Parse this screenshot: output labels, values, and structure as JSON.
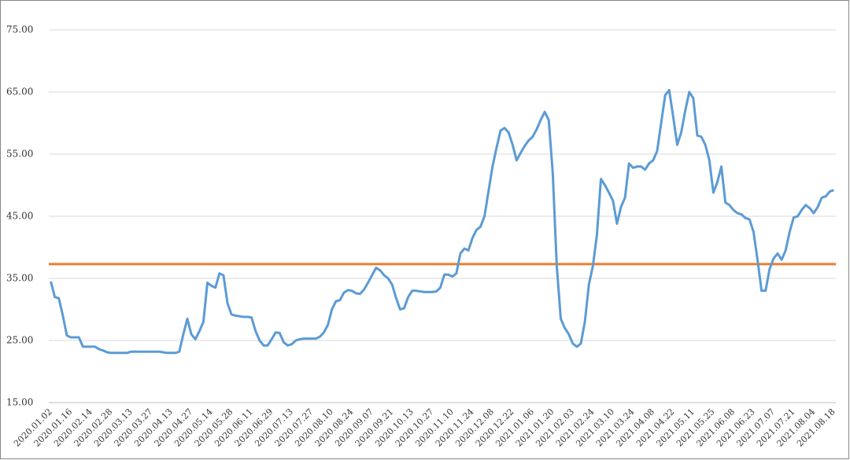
{
  "chart_data": {
    "type": "line",
    "categories": [
      "2020.01.02",
      null,
      null,
      null,
      null,
      "2020.01.16",
      null,
      null,
      null,
      null,
      "2020.02.14",
      null,
      null,
      null,
      null,
      "2020.02.28",
      null,
      null,
      null,
      null,
      "2020.03.13",
      null,
      null,
      null,
      null,
      "2020.03.27",
      null,
      null,
      null,
      null,
      "2020.04.13",
      null,
      null,
      null,
      null,
      "2020.04.27",
      null,
      null,
      null,
      null,
      "2020.05.14",
      null,
      null,
      null,
      null,
      "2020.05.28",
      null,
      null,
      null,
      null,
      "2020.06.11",
      null,
      null,
      null,
      null,
      "2020.06.29",
      null,
      null,
      null,
      null,
      "2020.07.13",
      null,
      null,
      null,
      null,
      "2020.07.27",
      null,
      null,
      null,
      null,
      "2020.08.10",
      null,
      null,
      null,
      null,
      "2020.08.24",
      null,
      null,
      null,
      null,
      "2020.09.07",
      null,
      null,
      null,
      null,
      "2020.09.21",
      null,
      null,
      null,
      null,
      "2020.10.13",
      null,
      null,
      null,
      null,
      "2020.10.27",
      null,
      null,
      null,
      null,
      "2020.11.10",
      null,
      null,
      null,
      null,
      "2020.11.24",
      null,
      null,
      null,
      null,
      "2020.12.08",
      null,
      null,
      null,
      null,
      "2020.12.22",
      null,
      null,
      null,
      null,
      "2021.01.06",
      null,
      null,
      null,
      null,
      "2021.01.20",
      null,
      null,
      null,
      null,
      "2021.02.03",
      null,
      null,
      null,
      null,
      "2021.02.24",
      null,
      null,
      null,
      null,
      "2021.03.10",
      null,
      null,
      null,
      null,
      "2021.03.24",
      null,
      null,
      null,
      null,
      "2021.04.08",
      null,
      null,
      null,
      null,
      "2021.04.22",
      null,
      null,
      null,
      null,
      "2021.05.11",
      null,
      null,
      null,
      null,
      "2021.05.25",
      null,
      null,
      null,
      null,
      "2021.06.08",
      null,
      null,
      null,
      null,
      "2021.06.23",
      null,
      null,
      null,
      null,
      "2021.07.07",
      null,
      null,
      null,
      null,
      "2021.07.21",
      null,
      null,
      null,
      null,
      "2021.08.04",
      null,
      null,
      null,
      null,
      "2021.08.18"
    ],
    "series": [
      {
        "color": "#5b9bd5",
        "values": [
          34.5,
          32,
          31.8,
          29,
          25.8,
          25.5,
          25.5,
          25.5,
          24,
          24,
          24,
          24,
          23.6,
          23.4,
          23.1,
          23,
          23,
          23,
          23,
          23,
          23.2,
          23.2,
          23.2,
          23.2,
          23.2,
          23.2,
          23.2,
          23.2,
          23.1,
          23,
          23,
          23,
          23.2,
          26,
          28.5,
          26,
          25.2,
          26.5,
          28,
          34.3,
          33.8,
          33.5,
          35.8,
          35.5,
          31,
          29.2,
          29,
          28.9,
          28.8,
          28.8,
          28.7,
          26.5,
          25,
          24.2,
          24.2,
          25.2,
          26.3,
          26.2,
          24.7,
          24.2,
          24.4,
          25,
          25.2,
          25.3,
          25.3,
          25.3,
          25.3,
          25.6,
          26.3,
          27.5,
          30,
          31.3,
          31.5,
          32.7,
          33.1,
          33,
          32.6,
          32.5,
          33.2,
          34.3,
          35.5,
          36.7,
          36.3,
          35.5,
          35,
          34,
          31.8,
          30,
          30.2,
          32,
          33,
          33,
          32.9,
          32.8,
          32.8,
          32.8,
          32.9,
          33.5,
          35.6,
          35.6,
          35.3,
          35.8,
          39,
          39.8,
          39.5,
          41.5,
          42.8,
          43.3,
          45,
          49,
          53,
          56,
          58.8,
          59.2,
          58.5,
          56.5,
          54,
          55.2,
          56.3,
          57.2,
          57.8,
          59,
          60.5,
          61.8,
          60.5,
          52,
          37,
          28.5,
          27,
          26,
          24.5,
          24,
          24.5,
          28,
          34,
          37,
          42,
          51,
          50,
          48.8,
          47.5,
          43.8,
          46.5,
          48,
          53.5,
          52.8,
          53,
          53,
          52.5,
          53.5,
          54,
          55.5,
          60,
          64.5,
          65.3,
          61,
          56.5,
          58.5,
          62,
          65,
          64,
          58,
          57.8,
          56.5,
          54,
          48.8,
          50.5,
          53,
          47.2,
          46.8,
          46,
          45.5,
          45.3,
          44.7,
          44.5,
          42.5,
          38,
          33,
          33,
          36.5,
          38.2,
          39,
          38,
          39.5,
          42.5,
          44.8,
          45,
          46,
          46.8,
          46.3,
          45.5,
          46.5,
          48,
          48.2,
          49,
          49.2
        ]
      }
    ],
    "reference_line": {
      "value": 37.3,
      "color": "#ed7d31"
    },
    "ylim": [
      15,
      75
    ],
    "yticks": [
      {
        "value": 15,
        "label": "15.00"
      },
      {
        "value": 25,
        "label": "25.00"
      },
      {
        "value": 35,
        "label": "35.00"
      },
      {
        "value": 45,
        "label": "45.00"
      },
      {
        "value": 55,
        "label": "55.00"
      },
      {
        "value": 65,
        "label": "65.00"
      },
      {
        "value": 75,
        "label": "75.00"
      }
    ],
    "grid": true
  }
}
